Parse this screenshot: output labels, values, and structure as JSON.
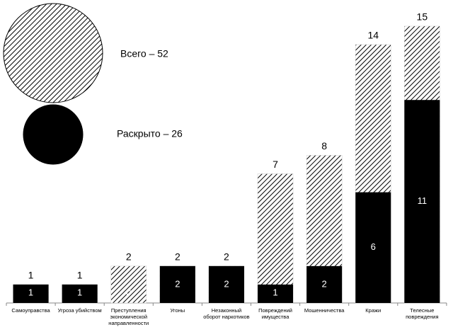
{
  "chart_data": {
    "type": "overlay-bar",
    "categories": [
      "Самоуправства",
      "Угроза убийством",
      "Преступления экономической направленности",
      "Угоны",
      "Незаконный оборот наркотиков",
      "Повреждений имущества",
      "Мошенничества",
      "Кражи",
      "Телесные повреждения"
    ],
    "series": [
      {
        "name": "Всего – 52",
        "color": "#000000",
        "hatch": true,
        "values": [
          1,
          1,
          2,
          2,
          2,
          7,
          8,
          14,
          15
        ]
      },
      {
        "name": "Раскрыто – 26",
        "color": "#000000",
        "hatch": false,
        "values": [
          1,
          1,
          0,
          2,
          2,
          1,
          2,
          6,
          11
        ]
      }
    ]
  }
}
